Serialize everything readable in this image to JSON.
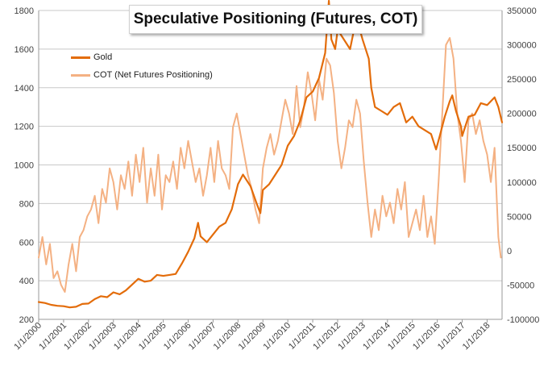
{
  "chart_data": {
    "type": "line",
    "title": "Speculative Positioning (Futures, COT)",
    "legend_position": "top-left",
    "grid": true,
    "x_ticks": [
      "1/1/2000",
      "1/1/2001",
      "1/1/2002",
      "1/1/2003",
      "1/1/2004",
      "1/1/2005",
      "1/1/2006",
      "1/1/2007",
      "1/1/2008",
      "1/1/2009",
      "1/1/2010",
      "1/1/2011",
      "1/1/2012",
      "1/1/2013",
      "1/1/2014",
      "1/1/2015",
      "1/1/2016",
      "1/1/2017",
      "1/1/2018"
    ],
    "xlim": [
      2000.0,
      2018.6
    ],
    "y_left": {
      "ticks": [
        200,
        400,
        600,
        800,
        1000,
        1200,
        1400,
        1600,
        1800
      ],
      "lim": [
        200,
        1800
      ]
    },
    "y_right": {
      "ticks": [
        "-100000",
        "-50000",
        "0",
        "50000",
        "100000",
        "150000",
        "200000",
        "250000",
        "300000",
        "350000"
      ],
      "lim": [
        -100000,
        350000
      ]
    },
    "series": [
      {
        "name": "Gold",
        "axis": "left",
        "color": "#e36c0a",
        "x": [
          2000.0,
          2000.25,
          2000.5,
          2000.75,
          2001.0,
          2001.25,
          2001.5,
          2001.75,
          2002.0,
          2002.25,
          2002.5,
          2002.75,
          2003.0,
          2003.25,
          2003.5,
          2003.75,
          2004.0,
          2004.25,
          2004.5,
          2004.75,
          2005.0,
          2005.25,
          2005.5,
          2005.75,
          2006.0,
          2006.25,
          2006.4,
          2006.5,
          2006.75,
          2007.0,
          2007.25,
          2007.5,
          2007.75,
          2008.0,
          2008.2,
          2008.5,
          2008.75,
          2008.9,
          2009.0,
          2009.25,
          2009.5,
          2009.75,
          2010.0,
          2010.25,
          2010.5,
          2010.75,
          2011.0,
          2011.25,
          2011.5,
          2011.65,
          2011.75,
          2011.9,
          2012.0,
          2012.25,
          2012.5,
          2012.75,
          2012.85,
          2013.0,
          2013.25,
          2013.35,
          2013.5,
          2013.75,
          2014.0,
          2014.25,
          2014.5,
          2014.75,
          2015.0,
          2015.25,
          2015.5,
          2015.75,
          2015.95,
          2016.1,
          2016.3,
          2016.5,
          2016.6,
          2016.75,
          2016.95,
          2017.0,
          2017.25,
          2017.5,
          2017.75,
          2018.0,
          2018.15,
          2018.3,
          2018.45,
          2018.6
        ],
        "values": [
          290,
          285,
          275,
          270,
          268,
          262,
          265,
          280,
          282,
          305,
          320,
          315,
          340,
          330,
          350,
          380,
          410,
          395,
          400,
          430,
          425,
          430,
          435,
          490,
          550,
          620,
          700,
          630,
          600,
          640,
          680,
          700,
          770,
          900,
          950,
          890,
          800,
          750,
          870,
          900,
          950,
          1000,
          1100,
          1150,
          1230,
          1350,
          1380,
          1450,
          1580,
          1850,
          1650,
          1600,
          1700,
          1650,
          1600,
          1760,
          1720,
          1650,
          1550,
          1400,
          1300,
          1280,
          1260,
          1300,
          1320,
          1220,
          1250,
          1200,
          1180,
          1160,
          1080,
          1150,
          1250,
          1330,
          1360,
          1280,
          1200,
          1150,
          1250,
          1260,
          1320,
          1310,
          1330,
          1350,
          1300,
          1220
        ]
      },
      {
        "name": "COT (Net Futures Positioning)",
        "axis": "right",
        "color": "#f4b183",
        "x": [
          2000.0,
          2000.15,
          2000.3,
          2000.45,
          2000.6,
          2000.75,
          2000.9,
          2001.05,
          2001.2,
          2001.35,
          2001.5,
          2001.65,
          2001.8,
          2001.95,
          2002.1,
          2002.25,
          2002.4,
          2002.55,
          2002.7,
          2002.85,
          2003.0,
          2003.15,
          2003.3,
          2003.45,
          2003.6,
          2003.75,
          2003.9,
          2004.05,
          2004.2,
          2004.35,
          2004.5,
          2004.65,
          2004.8,
          2004.95,
          2005.1,
          2005.25,
          2005.4,
          2005.55,
          2005.7,
          2005.85,
          2006.0,
          2006.15,
          2006.3,
          2006.45,
          2006.6,
          2006.75,
          2006.9,
          2007.05,
          2007.2,
          2007.35,
          2007.5,
          2007.65,
          2007.8,
          2007.95,
          2008.1,
          2008.25,
          2008.4,
          2008.55,
          2008.7,
          2008.85,
          2009.0,
          2009.15,
          2009.3,
          2009.45,
          2009.6,
          2009.75,
          2009.9,
          2010.05,
          2010.2,
          2010.35,
          2010.5,
          2010.65,
          2010.8,
          2010.95,
          2011.1,
          2011.25,
          2011.4,
          2011.55,
          2011.7,
          2011.85,
          2012.0,
          2012.15,
          2012.3,
          2012.45,
          2012.6,
          2012.75,
          2012.9,
          2013.05,
          2013.2,
          2013.35,
          2013.5,
          2013.65,
          2013.8,
          2013.95,
          2014.1,
          2014.25,
          2014.4,
          2014.55,
          2014.7,
          2014.85,
          2015.0,
          2015.15,
          2015.3,
          2015.45,
          2015.6,
          2015.75,
          2015.9,
          2016.05,
          2016.2,
          2016.35,
          2016.5,
          2016.65,
          2016.8,
          2016.95,
          2017.1,
          2017.25,
          2017.4,
          2017.55,
          2017.7,
          2017.85,
          2018.0,
          2018.15,
          2018.3,
          2018.45,
          2018.55
        ],
        "values": [
          -10000,
          20000,
          -20000,
          10000,
          -40000,
          -30000,
          -50000,
          -60000,
          -20000,
          10000,
          -30000,
          20000,
          30000,
          50000,
          60000,
          80000,
          40000,
          90000,
          70000,
          120000,
          100000,
          60000,
          110000,
          90000,
          130000,
          80000,
          140000,
          100000,
          150000,
          70000,
          120000,
          80000,
          140000,
          60000,
          110000,
          100000,
          130000,
          90000,
          150000,
          120000,
          160000,
          130000,
          100000,
          120000,
          80000,
          110000,
          150000,
          100000,
          160000,
          120000,
          110000,
          90000,
          180000,
          200000,
          170000,
          140000,
          110000,
          90000,
          60000,
          40000,
          120000,
          150000,
          170000,
          140000,
          160000,
          190000,
          220000,
          200000,
          170000,
          240000,
          180000,
          210000,
          260000,
          230000,
          190000,
          250000,
          220000,
          280000,
          270000,
          230000,
          160000,
          120000,
          150000,
          190000,
          180000,
          220000,
          200000,
          130000,
          70000,
          20000,
          60000,
          30000,
          80000,
          50000,
          70000,
          40000,
          90000,
          60000,
          100000,
          20000,
          40000,
          60000,
          30000,
          80000,
          20000,
          50000,
          10000,
          100000,
          200000,
          300000,
          310000,
          280000,
          200000,
          160000,
          100000,
          190000,
          200000,
          170000,
          190000,
          160000,
          140000,
          100000,
          150000,
          20000,
          -10000
        ]
      }
    ]
  }
}
